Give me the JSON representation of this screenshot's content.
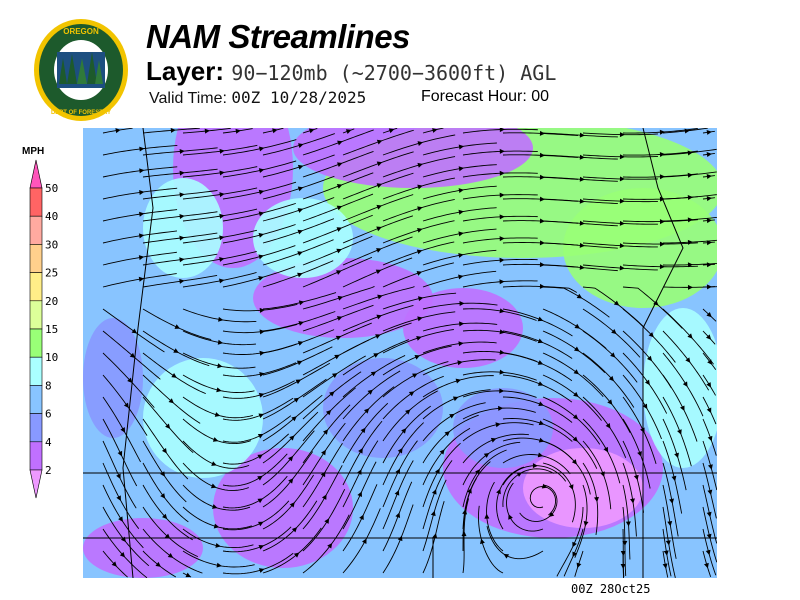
{
  "header": {
    "title": "NAM Streamlines",
    "layer_label": "Layer:",
    "layer_value": "90−120mb (~2700−3600ft) AGL",
    "valid_label": "Valid Time:",
    "valid_value": "00Z 10/28/2025",
    "forecast_label": "Forecast Hour:",
    "forecast_value": "00"
  },
  "logo": {
    "text_top": "OREGON",
    "text_bottom": "DEPARTMENT OF FORESTRY"
  },
  "legend": {
    "unit": "MPH",
    "labels": [
      "50",
      "40",
      "30",
      "25",
      "20",
      "15",
      "10",
      "8",
      "6",
      "4",
      "2"
    ],
    "colors": [
      "#ff55bb",
      "#ff6464",
      "#ffaaa0",
      "#ffd08c",
      "#ffee88",
      "#ddff99",
      "#99ff77",
      "#aaffff",
      "#88c4ff",
      "#8899ff",
      "#c070ff",
      "#ee99ff"
    ]
  },
  "map": {
    "background": "#88c4ff",
    "stamp": "00Z 28Oct25"
  }
}
